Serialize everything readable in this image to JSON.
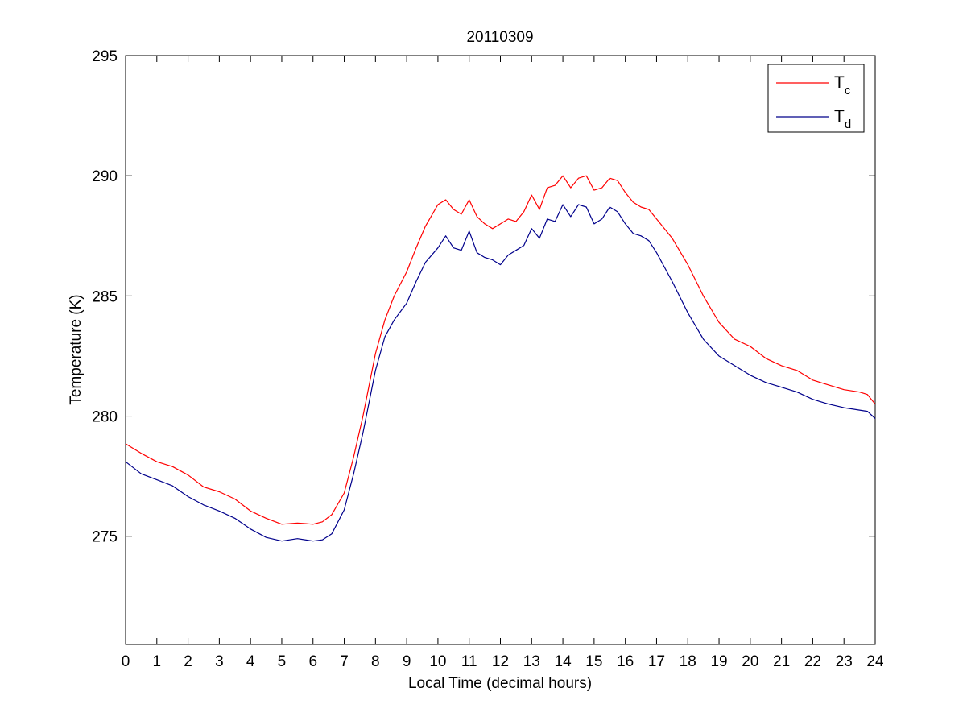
{
  "chart_data": {
    "type": "line",
    "title": "20110309",
    "xlabel": "Local Time (decimal hours)",
    "ylabel": "Temperature (K)",
    "xlim": [
      0,
      24
    ],
    "ylim": [
      270.5,
      295
    ],
    "xticks": [
      0,
      1,
      2,
      3,
      4,
      5,
      6,
      7,
      8,
      9,
      10,
      11,
      12,
      13,
      14,
      15,
      16,
      17,
      18,
      19,
      20,
      21,
      22,
      23,
      24
    ],
    "yticks": [
      275,
      280,
      285,
      290,
      295
    ],
    "grid": false,
    "legend_position": "top-right",
    "series": [
      {
        "name": "T_c",
        "legend_main": "T",
        "legend_sub": "c",
        "color": "#ff0000",
        "x": [
          0,
          0.5,
          1,
          1.5,
          2,
          2.5,
          3,
          3.5,
          4,
          4.5,
          5,
          5.5,
          6,
          6.3,
          6.6,
          7,
          7.3,
          7.6,
          8,
          8.3,
          8.6,
          9,
          9.3,
          9.6,
          10,
          10.25,
          10.5,
          10.75,
          11,
          11.25,
          11.5,
          11.75,
          12,
          12.25,
          12.5,
          12.75,
          13,
          13.25,
          13.5,
          13.75,
          14,
          14.25,
          14.5,
          14.75,
          15,
          15.25,
          15.5,
          15.75,
          16,
          16.25,
          16.5,
          16.75,
          17,
          17.5,
          18,
          18.5,
          19,
          19.5,
          20,
          20.5,
          21,
          21.5,
          22,
          22.5,
          23,
          23.5,
          23.75,
          24
        ],
        "y": [
          278.85,
          278.45,
          278.1,
          277.9,
          277.55,
          277.05,
          276.85,
          276.55,
          276.05,
          275.75,
          275.5,
          275.55,
          275.5,
          275.6,
          275.9,
          276.8,
          278.3,
          280.0,
          282.6,
          284.0,
          285.0,
          286.0,
          287.0,
          287.9,
          288.8,
          289.0,
          288.6,
          288.4,
          289.0,
          288.3,
          288.0,
          287.8,
          288.0,
          288.2,
          288.1,
          288.5,
          289.2,
          288.6,
          289.5,
          289.6,
          290.0,
          289.5,
          289.9,
          290.0,
          289.4,
          289.5,
          289.9,
          289.8,
          289.3,
          288.9,
          288.7,
          288.6,
          288.2,
          287.4,
          286.3,
          285.0,
          283.9,
          283.2,
          282.9,
          282.4,
          282.1,
          281.9,
          281.5,
          281.3,
          281.1,
          281.0,
          280.9,
          280.5
        ]
      },
      {
        "name": "T_d",
        "legend_main": "T",
        "legend_sub": "d",
        "color": "#00008b",
        "x": [
          0,
          0.5,
          1,
          1.5,
          2,
          2.5,
          3,
          3.5,
          4,
          4.5,
          5,
          5.5,
          6,
          6.3,
          6.6,
          7,
          7.3,
          7.6,
          8,
          8.3,
          8.6,
          9,
          9.3,
          9.6,
          10,
          10.25,
          10.5,
          10.75,
          11,
          11.25,
          11.5,
          11.75,
          12,
          12.25,
          12.5,
          12.75,
          13,
          13.25,
          13.5,
          13.75,
          14,
          14.25,
          14.5,
          14.75,
          15,
          15.25,
          15.5,
          15.75,
          16,
          16.25,
          16.5,
          16.75,
          17,
          17.5,
          18,
          18.5,
          19,
          19.5,
          20,
          20.5,
          21,
          21.5,
          22,
          22.5,
          23,
          23.5,
          23.75,
          24
        ],
        "y": [
          278.1,
          277.6,
          277.35,
          277.1,
          276.65,
          276.3,
          276.05,
          275.75,
          275.3,
          274.95,
          274.8,
          274.9,
          274.8,
          274.85,
          275.1,
          276.1,
          277.6,
          279.3,
          281.9,
          283.3,
          284.0,
          284.7,
          285.6,
          286.4,
          287.0,
          287.5,
          287.0,
          286.9,
          287.7,
          286.8,
          286.6,
          286.5,
          286.3,
          286.7,
          286.9,
          287.1,
          287.8,
          287.4,
          288.2,
          288.1,
          288.8,
          288.3,
          288.8,
          288.7,
          288.0,
          288.2,
          288.7,
          288.5,
          288.0,
          287.6,
          287.5,
          287.3,
          286.8,
          285.6,
          284.3,
          283.2,
          282.5,
          282.1,
          281.7,
          281.4,
          281.2,
          281.0,
          280.7,
          280.5,
          280.35,
          280.25,
          280.2,
          279.9
        ]
      }
    ]
  }
}
